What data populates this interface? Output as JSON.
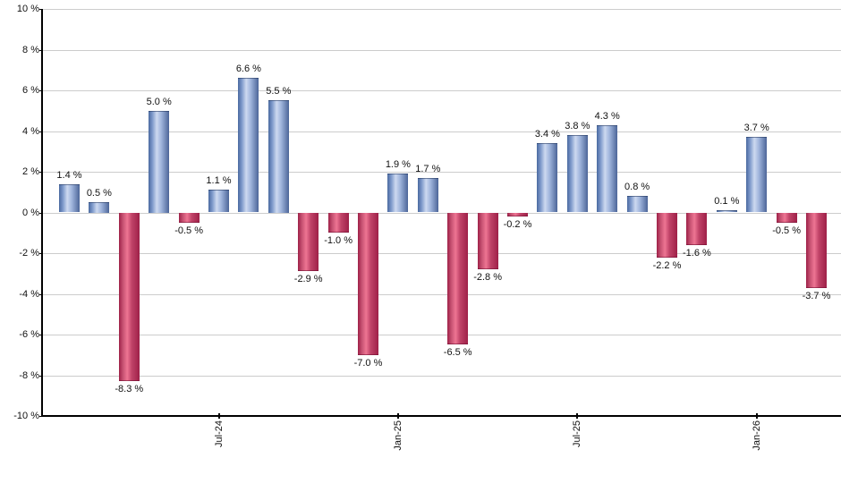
{
  "chart_data": {
    "type": "bar",
    "ylim": [
      -10,
      10
    ],
    "y_tick_step": 2,
    "grid": true,
    "legend": false,
    "y_tick_labels": [
      "10 %",
      "8 %",
      "6 %",
      "4 %",
      "2 %",
      "0 %",
      "-2 %",
      "-4 %",
      "-6 %",
      "-8 %",
      "-10 %"
    ],
    "x_ticks": [
      {
        "label": "Jul-24",
        "bar_index": 6
      },
      {
        "label": "Jan-25",
        "bar_index": 12
      },
      {
        "label": "Jul-25",
        "bar_index": 18
      },
      {
        "label": "Jan-26",
        "bar_index": 24
      }
    ],
    "bars": [
      {
        "value": 1.4,
        "label": "1.4 %",
        "color": "positive"
      },
      {
        "value": 0.5,
        "label": "0.5 %",
        "color": "positive"
      },
      {
        "value": -8.3,
        "label": "-8.3 %",
        "color": "negative"
      },
      {
        "value": 5.0,
        "label": "5.0 %",
        "color": "positive"
      },
      {
        "value": -0.5,
        "label": "-0.5 %",
        "color": "negative"
      },
      {
        "value": 1.1,
        "label": "1.1 %",
        "color": "positive"
      },
      {
        "value": 6.6,
        "label": "6.6 %",
        "color": "positive"
      },
      {
        "value": 5.5,
        "label": "5.5 %",
        "color": "positive"
      },
      {
        "value": -2.9,
        "label": "-2.9 %",
        "color": "negative"
      },
      {
        "value": -1.0,
        "label": "-1.0 %",
        "color": "negative"
      },
      {
        "value": -7.0,
        "label": "-7.0 %",
        "color": "negative"
      },
      {
        "value": 1.9,
        "label": "1.9 %",
        "color": "positive"
      },
      {
        "value": 1.7,
        "label": "1.7 %",
        "color": "positive"
      },
      {
        "value": -6.5,
        "label": "-6.5 %",
        "color": "negative"
      },
      {
        "value": -2.8,
        "label": "-2.8 %",
        "color": "negative"
      },
      {
        "value": -0.2,
        "label": "-0.2 %",
        "color": "negative"
      },
      {
        "value": 3.4,
        "label": "3.4 %",
        "color": "positive"
      },
      {
        "value": 3.8,
        "label": "3.8 %",
        "color": "positive"
      },
      {
        "value": 4.3,
        "label": "4.3 %",
        "color": "positive"
      },
      {
        "value": 0.8,
        "label": "0.8 %",
        "color": "positive"
      },
      {
        "value": -2.2,
        "label": "-2.2 %",
        "color": "negative"
      },
      {
        "value": -1.6,
        "label": "-1.6 %",
        "color": "negative"
      },
      {
        "value": 0.1,
        "label": "0.1 %",
        "color": "positive"
      },
      {
        "value": 3.7,
        "label": "3.7 %",
        "color": "positive"
      },
      {
        "value": -0.5,
        "label": "-0.5 %",
        "color": "negative"
      },
      {
        "value": -3.7,
        "label": "-3.7 %",
        "color": "negative"
      }
    ],
    "colors": {
      "background": "#ffffff",
      "gridline": "#cccccc",
      "axis": "#000000",
      "text": "#111111",
      "positive_gradient": [
        "#4a6aa0",
        "#7b97c9",
        "#cdd9f0",
        "#9fb4dc",
        "#4c6598"
      ],
      "negative_gradient": [
        "#9e2047",
        "#c44f70",
        "#ee7593",
        "#c04368",
        "#9e2048"
      ]
    }
  }
}
